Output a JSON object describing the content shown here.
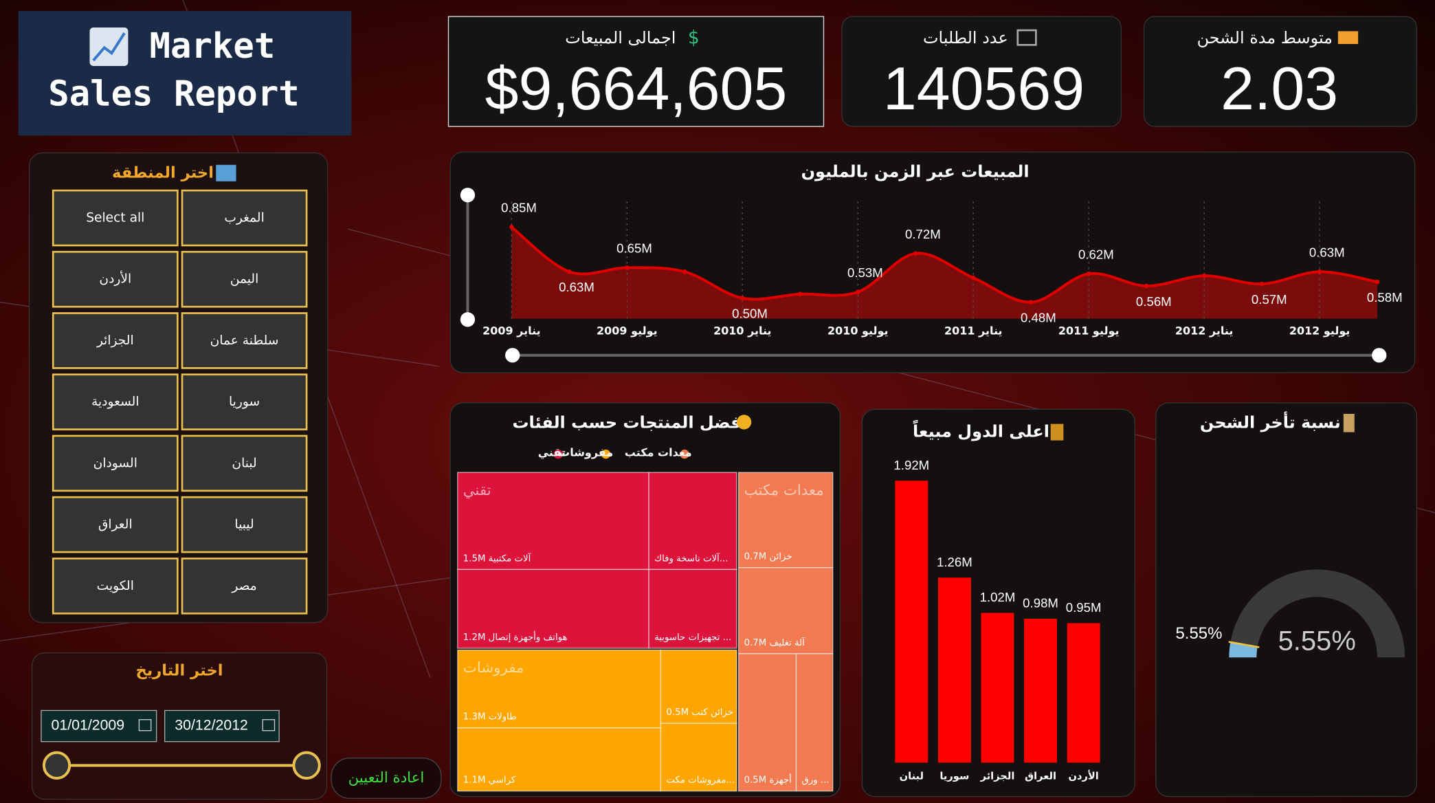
{
  "header": {
    "title_line1": "Market",
    "title_line2": "Sales Report"
  },
  "kpis": [
    {
      "label": "اجمالى المبيعات",
      "value": "$9,664,605"
    },
    {
      "label": "عدد الطلبات",
      "value": "140569"
    },
    {
      "label": "متوسط مدة الشحن",
      "value": "2.03"
    }
  ],
  "region_filter": {
    "title": "اختر المنطقة",
    "options": [
      "Select all",
      "المغرب",
      "الأردن",
      "اليمن",
      "الجزائر",
      "سلطنة عمان",
      "السعودية",
      "سوريا",
      "السودان",
      "لبنان",
      "العراق",
      "ليبيا",
      "الكويت",
      "مصر"
    ]
  },
  "date_filter": {
    "title": "اختر التاريخ",
    "start": "01/01/2009",
    "end": "30/12/2012"
  },
  "reset_button": "اعادة التعيين",
  "chart_data": [
    {
      "type": "line",
      "title": "المبيعات عبر الزمن بالمليون",
      "color": "#e00000",
      "categories": [
        "يناير 2009",
        null,
        "يوليو 2009",
        null,
        "يناير 2010",
        null,
        "يوليو 2010",
        null,
        "يناير 2011",
        null,
        "يوليو 2011",
        null,
        "يناير 2012",
        null,
        "يوليو 2012",
        null
      ],
      "values": [
        0.85,
        0.63,
        0.65,
        0.63,
        0.5,
        0.52,
        0.53,
        0.72,
        0.6,
        0.48,
        0.62,
        0.56,
        0.61,
        0.57,
        0.63,
        0.58
      ],
      "value_labels": [
        "0.85M",
        "0.63M",
        "0.65M",
        null,
        "0.50M",
        null,
        "0.53M",
        "0.72M",
        null,
        "0.48M",
        "0.62M",
        "0.56M",
        null,
        "0.57M",
        "0.63M",
        "0.58M"
      ]
    },
    {
      "type": "treemap",
      "title": "افضل المنتجات حسب الفئات",
      "series": [
        {
          "name": "تقني",
          "color": "#dc143c",
          "items": [
            {
              "name": "آلات مكتبية",
              "value": 1.5,
              "value_label": "1.5M"
            },
            {
              "name": "آلات ناسخة وفاك...",
              "value": 0.7
            },
            {
              "name": "هواتف وأجهزة إتصال",
              "value": 1.2,
              "value_label": "1.2M"
            },
            {
              "name": "تجهيزات حاسوبية ...",
              "value": 0.55
            }
          ]
        },
        {
          "name": "مفروشات",
          "color": "#ffa500",
          "items": [
            {
              "name": "طاولات",
              "value": 1.3,
              "value_label": "1.3M"
            },
            {
              "name": "خزائن كتب",
              "value": 0.5,
              "value_label": "0.5M"
            },
            {
              "name": "كراسي",
              "value": 1.1,
              "value_label": "1.1M"
            },
            {
              "name": "مفروشات مكت...",
              "value": 0.45
            }
          ]
        },
        {
          "name": "معدات مكتب",
          "color": "#f27a50",
          "items": [
            {
              "name": "خزائن",
              "value": 0.7,
              "value_label": "0.7M"
            },
            {
              "name": "آلة تغليف",
              "value": 0.7,
              "value_label": "0.7M"
            },
            {
              "name": "أجهزة",
              "value": 0.5,
              "value_label": "0.5M"
            },
            {
              "name": "ورق ...",
              "value": 0.3
            }
          ]
        }
      ]
    },
    {
      "type": "bar",
      "title": "اعلى الدول مبيعاً",
      "color": "#ff0000",
      "categories": [
        "لبنان",
        "سوريا",
        "الجزائر",
        "العراق",
        "الأردن"
      ],
      "values": [
        1.92,
        1.26,
        1.02,
        0.98,
        0.95
      ],
      "value_labels": [
        "1.92M",
        "1.26M",
        "1.02M",
        "0.98M",
        "0.95M"
      ]
    },
    {
      "type": "gauge",
      "title": "نسبة تأخر الشحن",
      "value": 5.55,
      "value_label": "5.55%",
      "target": 5.55,
      "target_label": "5.55%"
    }
  ]
}
